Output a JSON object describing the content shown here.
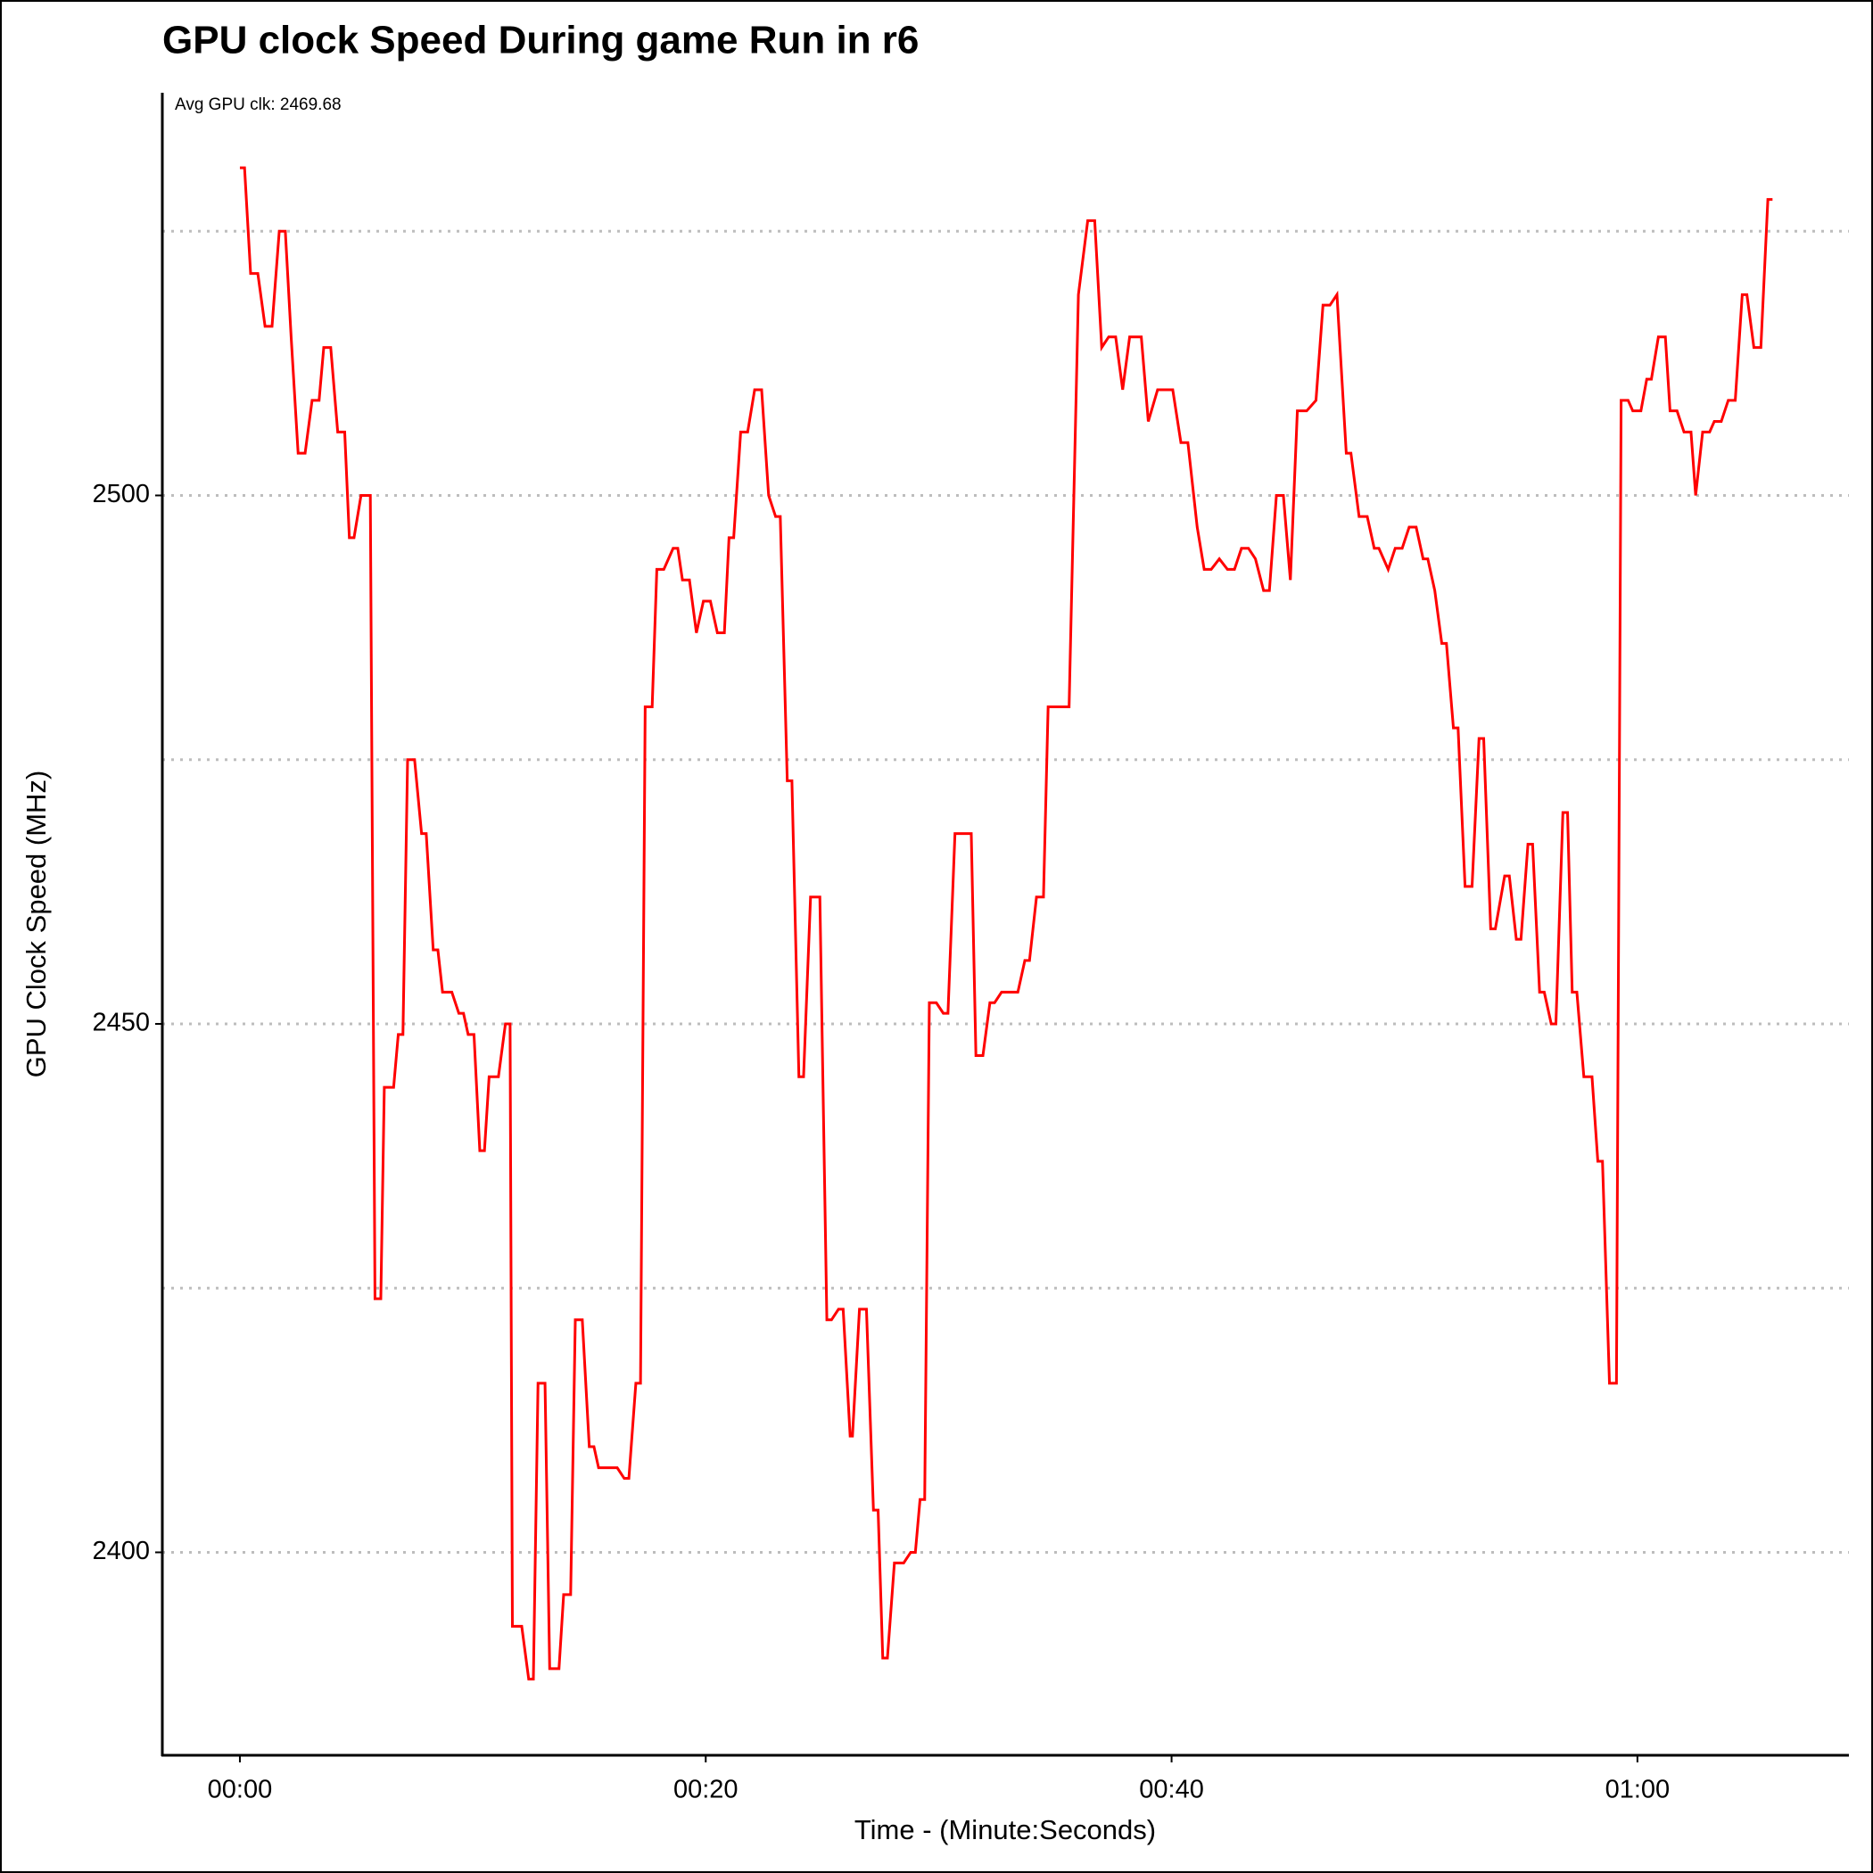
{
  "chart_data": {
    "type": "line",
    "title": "GPU clock Speed During game Run in r6",
    "annotation": "Avg GPU clk: 2469.68",
    "xlabel": "Time - (Minute:Seconds)",
    "ylabel": "GPU Clock Speed (MHz)",
    "color": "#ff0000",
    "x": [
      0,
      0.2,
      0.46,
      0.77,
      1.08,
      1.38,
      1.69,
      1.95,
      2.2,
      2.5,
      2.8,
      3.1,
      3.4,
      3.6,
      3.9,
      4.2,
      4.5,
      4.7,
      4.9,
      5.2,
      5.6,
      5.8,
      6.05,
      6.2,
      6.6,
      6.8,
      7.0,
      7.2,
      7.5,
      7.8,
      8.0,
      8.3,
      8.5,
      8.7,
      9.1,
      9.4,
      9.6,
      9.8,
      10.05,
      10.3,
      10.5,
      10.7,
      11.1,
      11.4,
      11.6,
      11.7,
      12.1,
      12.4,
      12.6,
      12.8,
      13.1,
      13.3,
      13.7,
      13.9,
      14.2,
      14.4,
      14.7,
      15.0,
      15.2,
      15.4,
      16.2,
      16.5,
      16.7,
      17.0,
      17.2,
      17.4,
      17.7,
      17.9,
      18.2,
      18.6,
      18.8,
      19.0,
      19.3,
      19.6,
      19.9,
      20.2,
      20.5,
      20.8,
      21.0,
      21.2,
      21.5,
      21.8,
      22.1,
      22.4,
      22.7,
      23.0,
      23.2,
      23.5,
      23.7,
      24.0,
      24.2,
      24.5,
      24.9,
      25.2,
      25.4,
      25.7,
      25.9,
      26.2,
      26.3,
      26.6,
      26.9,
      27.2,
      27.4,
      27.6,
      27.8,
      28.1,
      28.5,
      28.8,
      29.0,
      29.2,
      29.4,
      29.6,
      29.9,
      30.2,
      30.4,
      30.7,
      31.4,
      31.6,
      31.9,
      32.2,
      32.4,
      32.7,
      33.4,
      33.7,
      33.9,
      34.2,
      34.5,
      34.7,
      35.6,
      36.0,
      36.4,
      36.7,
      37.0,
      37.3,
      37.6,
      37.9,
      38.2,
      38.7,
      39.0,
      39.4,
      40.05,
      40.4,
      40.7,
      41.1,
      41.4,
      41.7,
      42.05,
      42.4,
      42.7,
      43.0,
      43.3,
      43.6,
      43.95,
      44.2,
      44.5,
      44.8,
      45.1,
      45.4,
      45.8,
      46.2,
      46.5,
      46.8,
      47.1,
      47.5,
      47.7,
      48.05,
      48.4,
      48.7,
      48.9,
      49.3,
      49.6,
      49.9,
      50.2,
      50.5,
      50.8,
      51.0,
      51.3,
      51.6,
      51.8,
      52.1,
      52.3,
      52.6,
      52.9,
      53.2,
      53.4,
      53.7,
      53.9,
      54.3,
      54.5,
      54.8,
      55.0,
      55.3,
      55.5,
      55.8,
      56.0,
      56.3,
      56.5,
      56.8,
      57.0,
      57.2,
      57.4,
      57.7,
      58.05,
      58.3,
      58.5,
      58.8,
      59.1,
      59.3,
      59.6,
      59.8,
      60.15,
      60.4,
      60.6,
      60.9,
      61.2,
      61.4,
      61.7,
      62.0,
      62.3,
      62.5,
      62.8,
      63.1,
      63.3,
      63.6,
      63.9,
      64.2,
      64.5,
      64.7,
      65.0,
      65.3,
      65.6,
      65.8
    ],
    "values": [
      2531,
      2531,
      2521,
      2521,
      2516,
      2516,
      2525,
      2525,
      2515,
      2504,
      2504,
      2509,
      2509,
      2514,
      2514,
      2506,
      2506,
      2496,
      2496,
      2500,
      2500,
      2424,
      2424,
      2444,
      2444,
      2449,
      2449,
      2475,
      2475,
      2468,
      2468,
      2457,
      2457,
      2453,
      2453,
      2451,
      2451,
      2449,
      2449,
      2438,
      2438,
      2445,
      2445,
      2450,
      2450,
      2393,
      2393,
      2388,
      2388,
      2416,
      2416,
      2389,
      2389,
      2396,
      2396,
      2422,
      2422,
      2410,
      2410,
      2408,
      2408,
      2407,
      2407,
      2416,
      2416,
      2480,
      2480,
      2493,
      2493,
      2495,
      2495,
      2492,
      2492,
      2487,
      2490,
      2490,
      2487,
      2487,
      2496,
      2496,
      2506,
      2506,
      2510,
      2510,
      2500,
      2498,
      2498,
      2473,
      2473,
      2445,
      2445,
      2462,
      2462,
      2422,
      2422,
      2423,
      2423,
      2411,
      2411,
      2423,
      2423,
      2404,
      2404,
      2390,
      2390,
      2399,
      2399,
      2400,
      2400,
      2405,
      2405,
      2452,
      2452,
      2451,
      2451,
      2468,
      2468,
      2447,
      2447,
      2452,
      2452,
      2453,
      2453,
      2456,
      2456,
      2462,
      2462,
      2480,
      2480,
      2519,
      2526,
      2526,
      2514,
      2515,
      2515,
      2510,
      2515,
      2515,
      2507,
      2510,
      2510,
      2505,
      2505,
      2497,
      2493,
      2493,
      2494,
      2493,
      2493,
      2495,
      2495,
      2494,
      2491,
      2491,
      2500,
      2500,
      2492,
      2508,
      2508,
      2509,
      2518,
      2518,
      2519,
      2504,
      2504,
      2498,
      2498,
      2495,
      2495,
      2493,
      2495,
      2495,
      2497,
      2497,
      2494,
      2494,
      2491,
      2486,
      2486,
      2478,
      2478,
      2463,
      2463,
      2477,
      2477,
      2459,
      2459,
      2464,
      2464,
      2458,
      2458,
      2467,
      2467,
      2453,
      2453,
      2450,
      2450,
      2470,
      2470,
      2453,
      2453,
      2445,
      2445,
      2437,
      2437,
      2416,
      2416,
      2509,
      2509,
      2508,
      2508,
      2511,
      2511,
      2515,
      2515,
      2508,
      2508,
      2506,
      2506,
      2500,
      2506,
      2506,
      2507,
      2507,
      2509,
      2509,
      2519,
      2519,
      2514,
      2514,
      2528,
      2528
    ],
    "xlim": [
      -3.33,
      69.08
    ],
    "ylim": [
      2380.8,
      2538.1
    ],
    "xticks": [
      {
        "value": 0,
        "label": "00:00"
      },
      {
        "value": 20,
        "label": "00:20"
      },
      {
        "value": 40,
        "label": "00:40"
      },
      {
        "value": 60,
        "label": "01:00"
      }
    ],
    "yticks": [
      2400,
      2450,
      2500
    ],
    "ygrid": [
      2400,
      2425,
      2450,
      2475,
      2500,
      2525
    ],
    "grid": true
  }
}
